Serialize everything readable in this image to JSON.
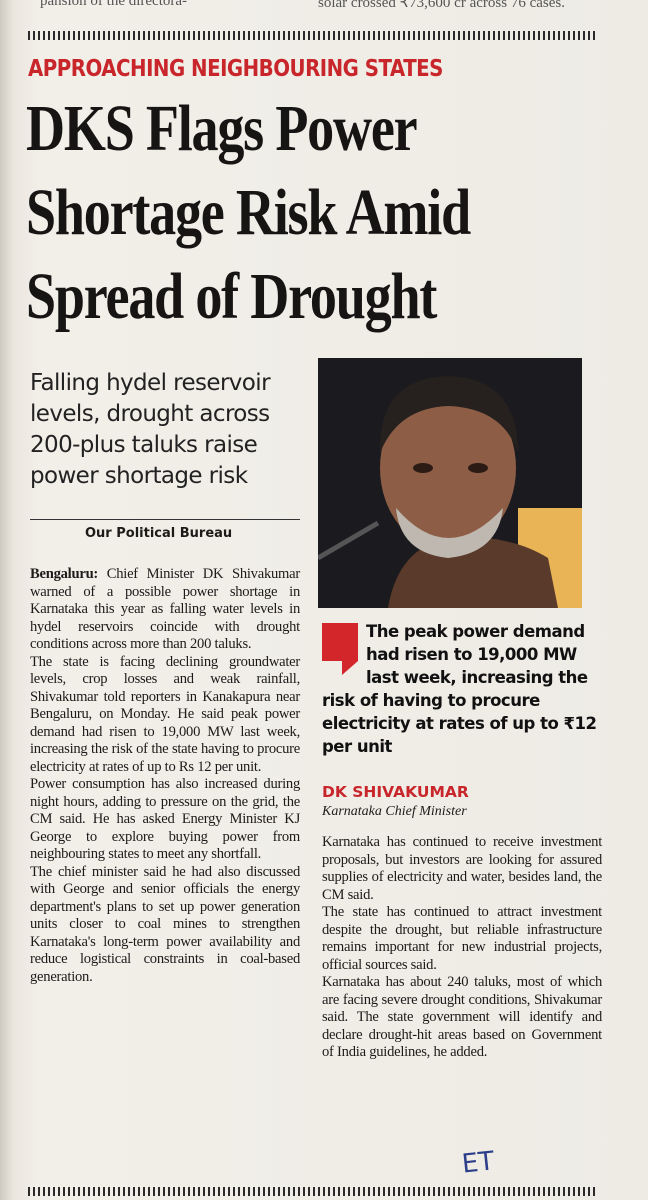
{
  "top_fragments": [
    "pansion of the directora-",
    "solar crossed ₹73,600 cr across 76 cases."
  ],
  "article": {
    "kicker": "APPROACHING NEIGHBOURING STATES",
    "headline": [
      "DKS Flags Power",
      "Shortage Risk Amid",
      "Spread of Drought"
    ],
    "deck": "Falling hydel reservoir levels, drought across 200-plus taluks raise power shortage risk",
    "byline": "Our Political Bureau",
    "dateline": "Bengaluru:",
    "left_paragraphs": [
      "Chief Minister DK Shivakumar warned of a possible power shortage in Karnataka this year as falling water levels in hydel reservoirs coincide with drought conditions across more than 200 taluks.",
      "The state is facing declining groundwater levels, crop losses and weak rainfall, Shivakumar told reporters in Kanakapura near Bengaluru, on Monday. He said peak power demand had risen to 19,000 MW last week, increasing the risk of the state having to procure electricity at rates of up to Rs 12 per unit.",
      "Power consumption has also increased during night hours, adding to pressure on the grid, the CM said. He has asked Energy Minister KJ George to explore buying power from neighbouring states to meet any shortfall.",
      "The chief minister said he had also discussed with George and senior officials the energy department's plans to set up power generation units closer to coal mines to strengthen Karnataka's long-term power availability and reduce logistical constraints in coal-based generation."
    ],
    "quote": {
      "text": "The peak power demand had risen to 19,000 MW last week, increasing the risk of having to procure electricity at rates of up to ₹12 per unit",
      "name": "DK SHIVAKUMAR",
      "role": "Karnataka Chief Minister"
    },
    "right_paragraphs": [
      "Karnataka has continued to receive investment proposals, but investors are looking for assured supplies of electricity and water, besides land, the CM said.",
      "The state has continued to attract investment despite the drought, but reliable infrastructure remains important for new industrial projects, official sources said.",
      "Karnataka has about 240 taluks, most of which are facing severe drought conditions, Shivakumar said. The state government will identify and declare drought-hit areas based on Government of India guidelines, he added."
    ],
    "handwritten_note": "ET"
  }
}
